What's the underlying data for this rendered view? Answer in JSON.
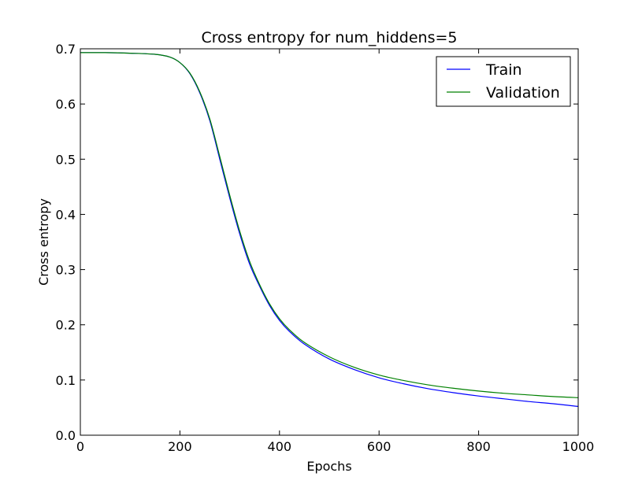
{
  "chart_data": {
    "type": "line",
    "title": "Cross entropy for num_hiddens=5",
    "xlabel": "Epochs",
    "ylabel": "Cross entropy",
    "xlim": [
      0,
      1000
    ],
    "ylim": [
      0.0,
      0.7
    ],
    "xticks": [
      0,
      200,
      400,
      600,
      800,
      1000
    ],
    "xtick_labels": [
      "0",
      "200",
      "400",
      "600",
      "800",
      "1000"
    ],
    "yticks": [
      0.0,
      0.1,
      0.2,
      0.3,
      0.4,
      0.5,
      0.6,
      0.7
    ],
    "ytick_labels": [
      "0.0",
      "0.1",
      "0.2",
      "0.3",
      "0.4",
      "0.5",
      "0.6",
      "0.7"
    ],
    "grid": false,
    "legend": {
      "position": "top-right"
    },
    "x": [
      0,
      50,
      100,
      150,
      180,
      200,
      220,
      240,
      260,
      280,
      300,
      320,
      340,
      360,
      380,
      400,
      420,
      450,
      500,
      550,
      600,
      650,
      700,
      750,
      800,
      850,
      900,
      950,
      1000
    ],
    "series": [
      {
        "name": "Train",
        "color": "#0000ff",
        "values": [
          0.693,
          0.693,
          0.692,
          0.69,
          0.685,
          0.675,
          0.655,
          0.62,
          0.57,
          0.5,
          0.43,
          0.365,
          0.31,
          0.27,
          0.235,
          0.208,
          0.188,
          0.165,
          0.138,
          0.119,
          0.104,
          0.093,
          0.084,
          0.077,
          0.071,
          0.066,
          0.061,
          0.057,
          0.052
        ]
      },
      {
        "name": "Validation",
        "color": "#008000",
        "values": [
          0.693,
          0.693,
          0.692,
          0.69,
          0.685,
          0.675,
          0.656,
          0.622,
          0.573,
          0.505,
          0.435,
          0.37,
          0.315,
          0.273,
          0.238,
          0.211,
          0.191,
          0.168,
          0.142,
          0.123,
          0.109,
          0.099,
          0.091,
          0.085,
          0.08,
          0.076,
          0.073,
          0.07,
          0.068
        ]
      }
    ]
  }
}
